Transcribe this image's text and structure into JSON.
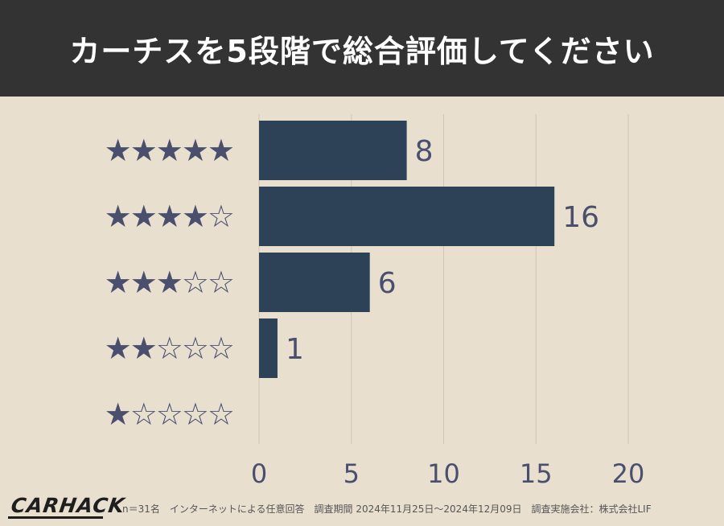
{
  "header": {
    "title": "カーチスを5段階で総合評価してください"
  },
  "chart_data": {
    "type": "bar",
    "orientation": "horizontal",
    "categories": [
      "★★★★★",
      "★★★★☆",
      "★★★☆☆",
      "★★☆☆☆",
      "★☆☆☆☆"
    ],
    "values": [
      8,
      16,
      6,
      1,
      0
    ],
    "data_labels": [
      "8",
      "16",
      "6",
      "1",
      ""
    ],
    "x_ticks": [
      0,
      5,
      10,
      15,
      20
    ],
    "xlim": [
      0,
      20
    ],
    "grid": true,
    "colors": {
      "bar": "#2d4257",
      "star": "#4a4f6e",
      "label": "#4a4f6e",
      "tick": "#4a4f6e",
      "grid": "#cfc6b6"
    }
  },
  "footer": {
    "logo": "CARHACK",
    "note": "n＝31名　インターネットによる任意回答　調査期間 2024年11月25日〜2024年12月09日　調査実施会社：株式会社LIF"
  }
}
